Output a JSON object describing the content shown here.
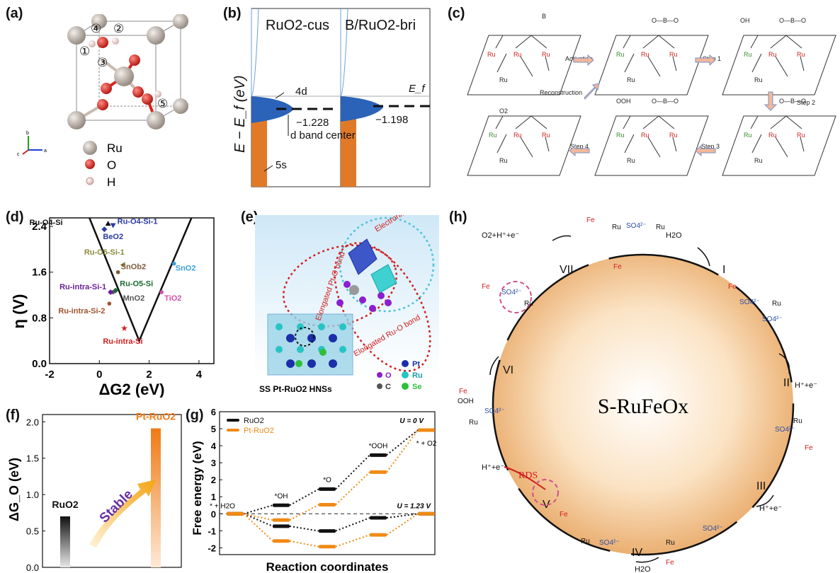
{
  "panel_labels": [
    "(a)",
    "(b)",
    "(c)",
    "(d)",
    "(e)",
    "(f)",
    "(g)",
    "(h)"
  ],
  "panel_a": {
    "site_labels": [
      "①",
      "②",
      "③",
      "④",
      "⑤"
    ],
    "legend": [
      {
        "label": "Ru",
        "color": "#bdb3a9"
      },
      {
        "label": "O",
        "color": "#d9231f"
      },
      {
        "label": "H",
        "color": "#f0d6d2"
      }
    ],
    "axis_labels": [
      "a",
      "b",
      "c"
    ]
  },
  "panel_b": {
    "subpanels": [
      {
        "title": "RuO2-cus",
        "center_value": "−1.228",
        "band_4d": "4d",
        "band_5s": "5s",
        "center_label": "d band center"
      },
      {
        "title": "B/RuO2-bri",
        "center_value": "−1.198",
        "ef_label": "E_f"
      }
    ],
    "ylabel": "E − E_f (eV)"
  },
  "panel_c": {
    "steps": [
      "Activation",
      "Step 1",
      "Step 2",
      "Step 3",
      "Step 4",
      "Reconstruction"
    ],
    "atoms": [
      "Ru",
      "B",
      "O",
      "OH",
      "OOH",
      "O2"
    ],
    "chains": [
      "O—B—O"
    ]
  },
  "panel_d": {
    "ylabel": "η (V)",
    "xlabel": "ΔG2 (eV)"
  },
  "panel_e": {
    "annotations": [
      "Electronic interaction",
      "Elongated Pt-O bond",
      "Elongated Ru-O bond"
    ],
    "caption": "SS Pt-RuO2 HNSs",
    "legend": [
      {
        "label": "Pt",
        "color": "#1a2fa8"
      },
      {
        "label": "O",
        "color": "#8a1fd1"
      },
      {
        "label": "Ru",
        "color": "#27c4c4"
      },
      {
        "label": "C",
        "color": "#555555"
      },
      {
        "label": "Se",
        "color": "#2fbf3a"
      }
    ]
  },
  "panel_f": {
    "arrow_label": "Stable",
    "ylabel": "ΔG_O (eV)"
  },
  "panel_g": {
    "conditions": [
      "U = 0 V",
      "U = 1.23 V"
    ],
    "step_labels": [
      "* + H2O",
      "*OH",
      "*O",
      "*OOH",
      "* + O2"
    ],
    "ylabel": "Free energy (eV)",
    "xlabel": "Reaction coordinates"
  },
  "panel_h": {
    "center_label": "S-RuFeOx",
    "roman_steps": [
      "I",
      "II",
      "III",
      "IV",
      "V",
      "VI",
      "VII"
    ],
    "species": [
      "H2O",
      "H⁺+e⁻",
      "O2+H⁺+e⁻",
      "RDS",
      "Ru",
      "Fe",
      "SO4²⁻",
      "OOH"
    ]
  },
  "chart_data": [
    {
      "type": "scatter",
      "panel": "d",
      "xlabel": "ΔG2 (eV)",
      "ylabel": "η (V)",
      "xlim": [
        -2,
        4.6
      ],
      "ylim": [
        0,
        2.55
      ],
      "xticks": [
        -2,
        0,
        2,
        4
      ],
      "yticks": [
        0.0,
        0.8,
        1.6,
        2.4
      ],
      "volcano": [
        [
          -0.4,
          2.6
        ],
        [
          1.6,
          0.4
        ],
        [
          3.7,
          2.6
        ]
      ],
      "points": [
        {
          "label": "Ru-O4-Si",
          "x": 0.35,
          "y": 2.45,
          "color": "#111111",
          "marker": "tri-up"
        },
        {
          "label": "Ru-O4-Si-1",
          "x": 0.55,
          "y": 2.42,
          "color": "#2b3aa8",
          "marker": "tri-down"
        },
        {
          "label": "BeO2",
          "x": 0.2,
          "y": 2.35,
          "color": "#2b3aa8",
          "marker": "diamond"
        },
        {
          "label": "Ru-O5-Si-1",
          "x": 0.95,
          "y": 1.73,
          "color": "#8b8b3a",
          "marker": "tri-left"
        },
        {
          "label": "SnOb2",
          "x": 0.75,
          "y": 1.6,
          "color": "#7a5a3a",
          "marker": "circle"
        },
        {
          "label": "Ru-O5-Si",
          "x": 0.65,
          "y": 1.28,
          "color": "#1a6b2f",
          "marker": "diamond"
        },
        {
          "label": "MnO2",
          "x": 0.55,
          "y": 1.25,
          "color": "#555555",
          "marker": "circle"
        },
        {
          "label": "Ru-intra-Si-1",
          "x": 0.45,
          "y": 1.25,
          "color": "#6a1f9a",
          "marker": "diamond"
        },
        {
          "label": "Ru-intra-Si-2",
          "x": 0.4,
          "y": 1.05,
          "color": "#a0522d",
          "marker": "circle"
        },
        {
          "label": "Ru-intra-Si",
          "x": 1.0,
          "y": 0.62,
          "color": "#d11f1f",
          "marker": "star"
        },
        {
          "label": "SnO2",
          "x": 3.0,
          "y": 1.75,
          "color": "#3aa0d8",
          "marker": "circle"
        },
        {
          "label": "TiO2",
          "x": 2.5,
          "y": 1.25,
          "color": "#d14fa8",
          "marker": "circle"
        }
      ]
    },
    {
      "type": "bar",
      "panel": "f",
      "ylabel": "ΔG_O (eV)",
      "ylim": [
        0,
        2.1
      ],
      "yticks": [
        0.0,
        0.5,
        1.0,
        1.5,
        2.0
      ],
      "categories": [
        "RuO2",
        "Pt-RuO2"
      ],
      "values": [
        0.7,
        1.91
      ],
      "colors": [
        "#111111",
        "#f07a14"
      ]
    },
    {
      "type": "line",
      "panel": "g",
      "ylabel": "Free energy (eV)",
      "xlabel": "Reaction coordinates",
      "ylim": [
        -2.4,
        6
      ],
      "yticks": [
        -2,
        -1,
        0,
        1,
        2,
        3,
        4,
        5,
        6
      ],
      "x": [
        0,
        1,
        2,
        3,
        4
      ],
      "series": [
        {
          "name": "RuO2",
          "color": "#111111",
          "u0": [
            0,
            0.5,
            1.45,
            3.45,
            4.92
          ],
          "u123": [
            0,
            -0.73,
            -1.01,
            -0.24,
            0
          ]
        },
        {
          "name": "Pt-RuO2",
          "color": "#f08a14",
          "u0": [
            0,
            -0.37,
            0.53,
            2.45,
            4.92
          ],
          "u123": [
            0,
            -1.6,
            -1.93,
            -1.24,
            0
          ]
        }
      ]
    }
  ]
}
